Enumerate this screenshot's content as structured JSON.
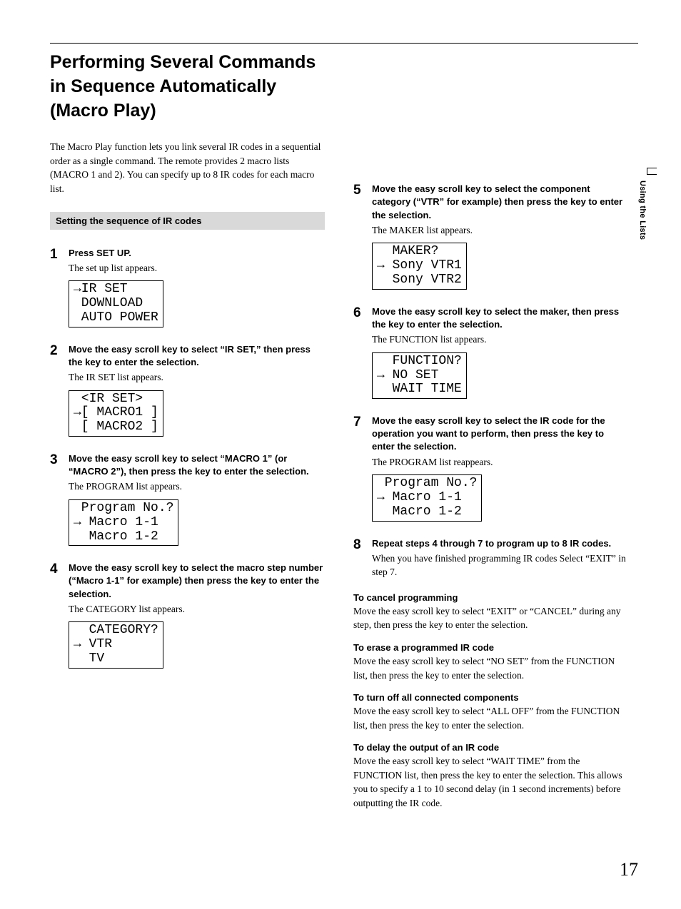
{
  "page": {
    "number": "17",
    "side_tab": "Using the Lists",
    "title": "Performing Several Commands in Sequence Automatically (Macro Play)",
    "intro": "The Macro Play function lets you link several IR codes in a sequential order as a single command. The remote provides 2 macro lists (MACRO 1 and 2). You can specify up to 8 IR codes for each macro list.",
    "section_bar": "Setting the sequence of IR codes"
  },
  "steps": {
    "s1": {
      "num": "1",
      "bold": "Press SET UP.",
      "plain": "The set up list appears.",
      "lcd": "→IR SET\n DOWNLOAD\n AUTO POWER"
    },
    "s2": {
      "num": "2",
      "bold": "Move the easy scroll key to select “IR SET,” then press the key to enter the selection.",
      "plain": "The IR SET list appears.",
      "lcd": " <IR SET>\n→[ MACRO1 ]\n [ MACRO2 ]"
    },
    "s3": {
      "num": "3",
      "bold": "Move the easy scroll key to select “MACRO 1” (or “MACRO 2”), then press the key to enter the selection.",
      "plain": "The PROGRAM list appears.",
      "lcd": " Program No.?\n→ Macro 1-1\n  Macro 1-2"
    },
    "s4": {
      "num": "4",
      "bold": "Move the easy scroll key to select the macro step number (“Macro 1-1” for example) then press the key to enter the selection.",
      "plain": "The CATEGORY list appears.",
      "lcd": "  CATEGORY?\n→ VTR\n  TV"
    },
    "s5": {
      "num": "5",
      "bold": "Move the easy scroll key to select the component category (“VTR” for example) then press the key to enter the selection.",
      "plain": "The MAKER list appears.",
      "lcd": "  MAKER?\n→ Sony VTR1\n  Sony VTR2"
    },
    "s6": {
      "num": "6",
      "bold": "Move the easy scroll key to select the maker, then press the key to enter the selection.",
      "plain": "The FUNCTION list appears.",
      "lcd": "  FUNCTION?\n→ NO SET\n  WAIT TIME"
    },
    "s7": {
      "num": "7",
      "bold": "Move the easy scroll key to select the IR code for the operation you want to perform, then press the key to enter the selection.",
      "plain": "The PROGRAM list reappears.",
      "lcd": " Program No.?\n→ Macro 1-1\n  Macro 1-2"
    },
    "s8": {
      "num": "8",
      "bold": "Repeat steps 4 through 7 to program up to 8 IR codes.",
      "plain": "When you have finished programming IR codes Select “EXIT” in step 7."
    }
  },
  "subs": {
    "cancel_h": "To cancel programming",
    "cancel_p": "Move the easy scroll key to select “EXIT” or “CANCEL” during any step, then press the key to enter the selection.",
    "erase_h": "To erase a programmed IR code",
    "erase_p": "Move the easy scroll key to select “NO SET” from the FUNCTION list, then press the key to enter the selection.",
    "off_h": "To turn off all connected components",
    "off_p": "Move the easy scroll key to select “ALL OFF” from the FUNCTION list, then press the key to enter the selection.",
    "delay_h": "To delay the output of an IR code",
    "delay_p": "Move the easy scroll key to select “WAIT TIME” from the FUNCTION list, then press the key to enter the selection. This allows you to specify a 1 to 10 second delay (in 1 second increments) before outputting the IR code."
  }
}
